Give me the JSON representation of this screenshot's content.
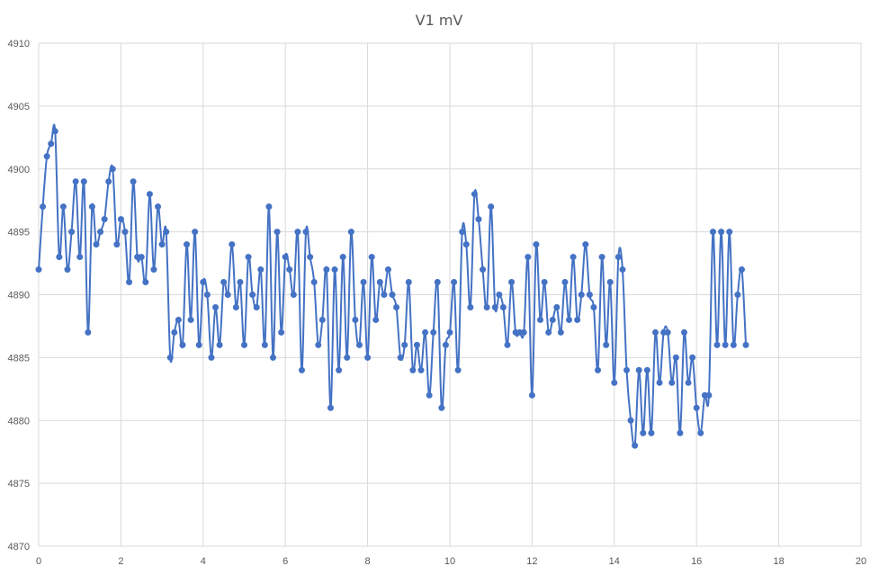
{
  "chart_data": {
    "type": "scatter",
    "title": "V1 mV",
    "xlabel": "",
    "ylabel": "",
    "xlim": [
      0,
      20
    ],
    "ylim": [
      4870,
      4910
    ],
    "x_ticks": [
      "0",
      "2",
      "4",
      "6",
      "8",
      "10",
      "12",
      "14",
      "16",
      "18",
      "20"
    ],
    "y_ticks": [
      "4870",
      "4875",
      "4880",
      "4885",
      "4890",
      "4895",
      "4900",
      "4905",
      "4910"
    ],
    "x_tick_values": [
      0,
      2,
      4,
      6,
      8,
      10,
      12,
      14,
      16,
      18,
      20
    ],
    "y_tick_values": [
      4870,
      4875,
      4880,
      4885,
      4890,
      4895,
      4900,
      4905,
      4910
    ],
    "grid": true,
    "legend": "none",
    "line_style": "smoothed line with markers",
    "series": [
      {
        "color": "#4472c4",
        "x": [
          0,
          0.1,
          0.2,
          0.3,
          0.4,
          0.5,
          0.6,
          0.7,
          0.8,
          0.9,
          1.0,
          1.1,
          1.2,
          1.3,
          1.4,
          1.5,
          1.6,
          1.7,
          1.8,
          1.9,
          2.0,
          2.1,
          2.2,
          2.3,
          2.4,
          2.5,
          2.6,
          2.7,
          2.8,
          2.9,
          3.0,
          3.1,
          3.2,
          3.3,
          3.4,
          3.5,
          3.6,
          3.7,
          3.8,
          3.9,
          4.0,
          4.1,
          4.2,
          4.3,
          4.4,
          4.5,
          4.6,
          4.7,
          4.8,
          4.9,
          5.0,
          5.1,
          5.2,
          5.3,
          5.4,
          5.5,
          5.6,
          5.7,
          5.8,
          5.9,
          6.0,
          6.1,
          6.2,
          6.3,
          6.4,
          6.5,
          6.6,
          6.7,
          6.8,
          6.9,
          7.0,
          7.1,
          7.2,
          7.3,
          7.4,
          7.5,
          7.6,
          7.7,
          7.8,
          7.9,
          8.0,
          8.1,
          8.2,
          8.3,
          8.4,
          8.5,
          8.6,
          8.7,
          8.8,
          8.9,
          9.0,
          9.1,
          9.2,
          9.3,
          9.4,
          9.5,
          9.6,
          9.7,
          9.8,
          9.9,
          10.0,
          10.1,
          10.2,
          10.3,
          10.4,
          10.5,
          10.6,
          10.7,
          10.8,
          10.9,
          11.0,
          11.1,
          11.2,
          11.3,
          11.4,
          11.5,
          11.6,
          11.7,
          11.8,
          11.9,
          12.0,
          12.1,
          12.2,
          12.3,
          12.4,
          12.5,
          12.6,
          12.7,
          12.8,
          12.9,
          13.0,
          13.1,
          13.2,
          13.3,
          13.4,
          13.5,
          13.6,
          13.7,
          13.8,
          13.9,
          14.0,
          14.1,
          14.2,
          14.3,
          14.4,
          14.5,
          14.6,
          14.7,
          14.8,
          14.9,
          15.0,
          15.1,
          15.2,
          15.3,
          15.4,
          15.5,
          15.6,
          15.7,
          15.8,
          15.9,
          16.0,
          16.1,
          16.2,
          16.3,
          16.4,
          16.5,
          16.6,
          16.7,
          16.8,
          16.9,
          17.0,
          17.1,
          17.2
        ],
        "y": [
          4892,
          4897,
          4901,
          4902,
          4903,
          4893,
          4897,
          4892,
          4895,
          4899,
          4893,
          4899,
          4887,
          4897,
          4894,
          4895,
          4896,
          4899,
          4900,
          4894,
          4896,
          4895,
          4891,
          4899,
          4893,
          4893,
          4891,
          4898,
          4892,
          4897,
          4894,
          4895,
          4885,
          4887,
          4888,
          4886,
          4894,
          4888,
          4895,
          4886,
          4891,
          4890,
          4885,
          4889,
          4886,
          4891,
          4890,
          4894,
          4889,
          4891,
          4886,
          4893,
          4890,
          4889,
          4892,
          4886,
          4897,
          4885,
          4895,
          4887,
          4893,
          4892,
          4890,
          4895,
          4884,
          4895,
          4893,
          4891,
          4886,
          4888,
          4892,
          4881,
          4892,
          4884,
          4893,
          4885,
          4895,
          4888,
          4886,
          4891,
          4885,
          4893,
          4888,
          4891,
          4890,
          4892,
          4890,
          4889,
          4885,
          4886,
          4891,
          4884,
          4886,
          4884,
          4887,
          4882,
          4887,
          4891,
          4881,
          4886,
          4887,
          4891,
          4884,
          4895,
          4894,
          4889,
          4898,
          4896,
          4892,
          4889,
          4897,
          4889,
          4890,
          4889,
          4886,
          4891,
          4887,
          4887,
          4887,
          4893,
          4882,
          4894,
          4888,
          4891,
          4887,
          4888,
          4889,
          4887,
          4891,
          4888,
          4893,
          4888,
          4890,
          4894,
          4890,
          4889,
          4884,
          4893,
          4886,
          4891,
          4883,
          4893,
          4892,
          4884,
          4880,
          4878,
          4884,
          4879,
          4884,
          4879,
          4887,
          4883,
          4887,
          4887,
          4883,
          4885,
          4879,
          4887,
          4883,
          4885,
          4881,
          4879,
          4882,
          4882,
          4895,
          4886,
          4895,
          4886,
          4895,
          4886,
          4890,
          4892,
          4886
        ]
      }
    ]
  }
}
